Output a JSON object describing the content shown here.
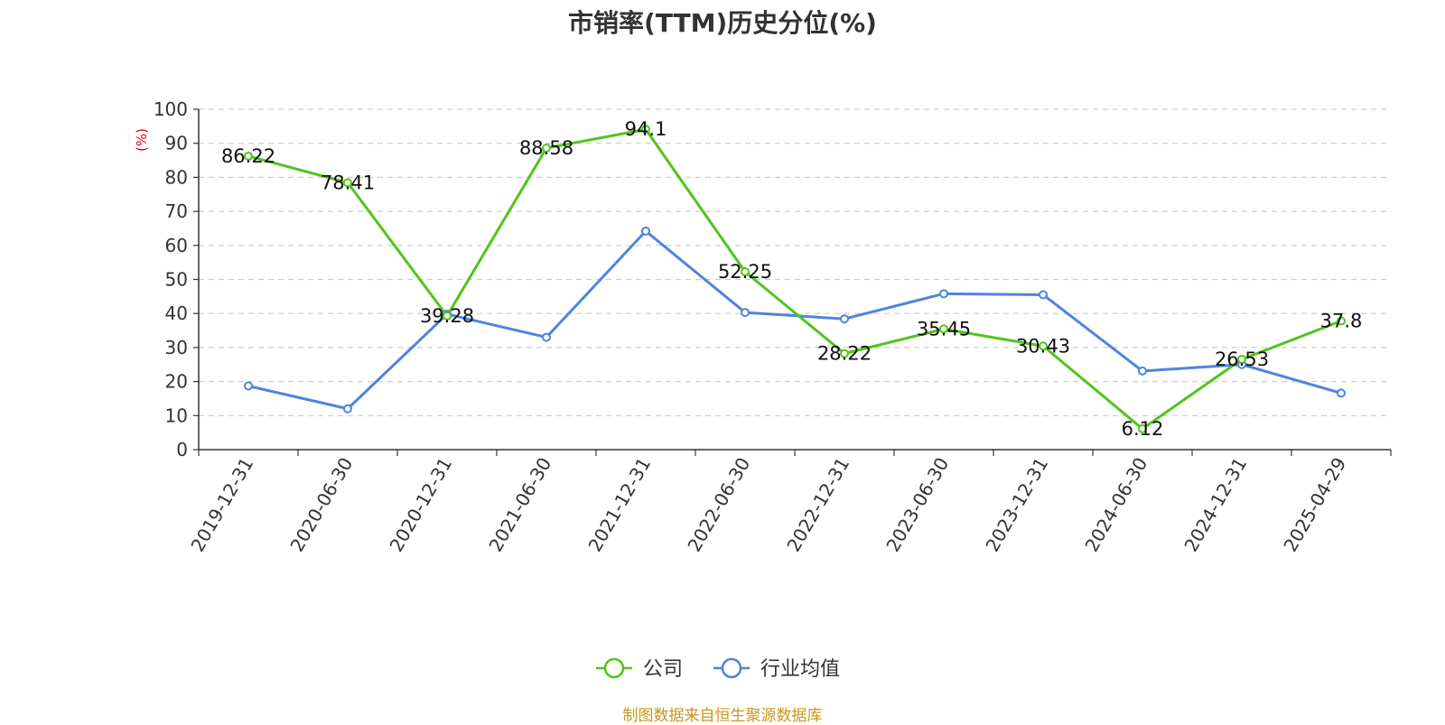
{
  "chart_data": {
    "type": "line",
    "title": "市销率(TTM)历史分位(%)",
    "ylabel": "(%)",
    "xlabel": "",
    "ylim": [
      0,
      100
    ],
    "yticks": [
      "0",
      "10",
      "20",
      "30",
      "40",
      "50",
      "60",
      "70",
      "80",
      "90",
      "100"
    ],
    "categories": [
      "2019-12-31",
      "2020-06-30",
      "2020-12-31",
      "2021-06-30",
      "2021-12-31",
      "2022-06-30",
      "2022-12-31",
      "2023-06-30",
      "2023-12-31",
      "2024-06-30",
      "2024-12-31",
      "2025-04-29"
    ],
    "grid": true,
    "legend_position": "bottom-center",
    "series": [
      {
        "name": "公司",
        "color": "#52c41a",
        "values": [
          86.22,
          78.41,
          39.28,
          88.58,
          94.1,
          52.25,
          28.22,
          35.45,
          30.43,
          6.12,
          26.53,
          37.8
        ],
        "labels": [
          "86.22",
          "78.41",
          "39.28",
          "88.58",
          "94.1",
          "52.25",
          "28.22",
          "35.45",
          "30.43",
          "6.12",
          "26.53",
          "37.8"
        ]
      },
      {
        "name": "行业均值",
        "color": "#4f84de",
        "values": [
          18.7,
          12.0,
          39.8,
          33.0,
          64.2,
          40.3,
          38.4,
          45.8,
          45.5,
          23.1,
          25.0,
          16.6
        ]
      }
    ]
  },
  "source_text": "制图数据来自恒生聚源数据库"
}
